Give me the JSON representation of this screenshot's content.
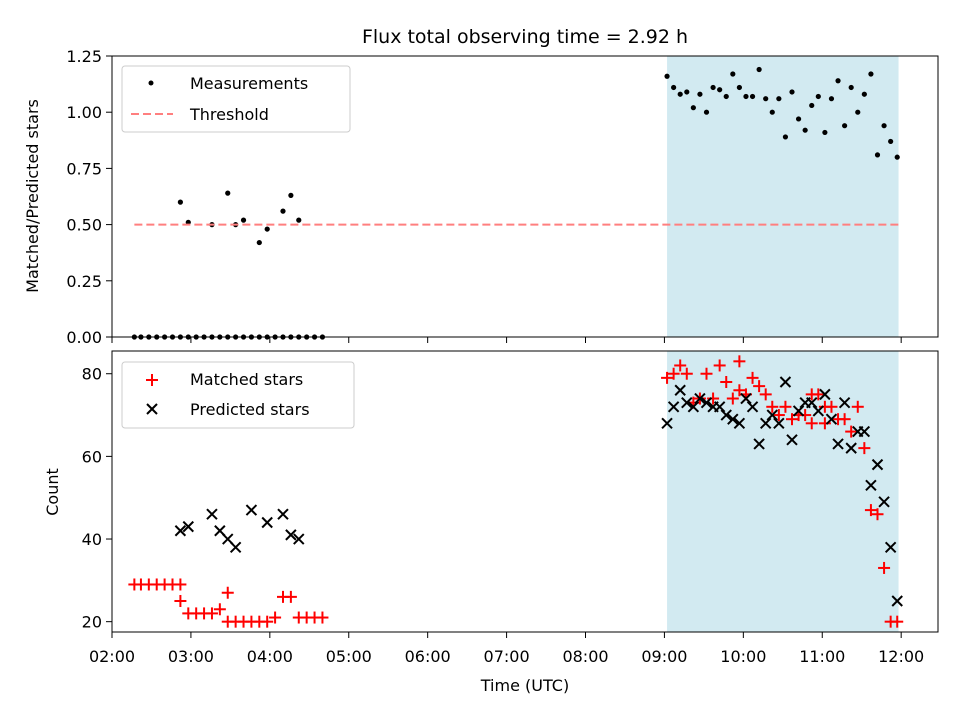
{
  "title": "Flux total observing time = 2.92 h",
  "colors": {
    "shade": "#add8e6",
    "threshold": "#ff7f7f",
    "measurement": "#000000",
    "matched": "#ff0000",
    "predicted": "#000000"
  },
  "chart_data": [
    {
      "type": "scatter",
      "ylabel": "Matched/Predicted stars",
      "xlim": [
        "02:00",
        "12:28"
      ],
      "ylim": [
        0,
        1.25
      ],
      "yticks": [
        "0.00",
        "0.25",
        "0.50",
        "0.75",
        "1.00",
        "1.25"
      ],
      "legend": "top-left",
      "grid": false,
      "shaded_interval": [
        "09:02",
        "11:58"
      ],
      "series": [
        {
          "name": "Measurements",
          "marker": "dot",
          "x": [
            "02:17",
            "02:22",
            "02:28",
            "02:34",
            "02:40",
            "02:46",
            "02:52",
            "02:58",
            "03:04",
            "03:10",
            "03:16",
            "03:22",
            "03:28",
            "03:34",
            "03:40",
            "03:46",
            "03:52",
            "03:58",
            "04:04",
            "04:10",
            "04:16",
            "04:22",
            "04:28",
            "04:34",
            "04:40",
            "02:52",
            "02:58",
            "03:16",
            "03:28",
            "03:34",
            "03:40",
            "03:52",
            "03:58",
            "04:10",
            "04:16",
            "04:22",
            "09:02",
            "09:07",
            "09:12",
            "09:17",
            "09:22",
            "09:27",
            "09:32",
            "09:37",
            "09:42",
            "09:47",
            "09:52",
            "09:57",
            "10:02",
            "10:07",
            "10:12",
            "10:17",
            "10:22",
            "10:27",
            "10:32",
            "10:37",
            "10:42",
            "10:47",
            "10:52",
            "10:57",
            "11:02",
            "11:07",
            "11:12",
            "11:17",
            "11:22",
            "11:27",
            "11:32",
            "11:37",
            "11:42",
            "11:47",
            "11:52",
            "11:57"
          ],
          "y": [
            0,
            0,
            0,
            0,
            0,
            0,
            0,
            0,
            0,
            0,
            0,
            0,
            0,
            0,
            0,
            0,
            0,
            0,
            0,
            0,
            0,
            0,
            0,
            0,
            0,
            0.6,
            0.51,
            0.5,
            0.64,
            0.5,
            0.52,
            0.42,
            0.48,
            0.56,
            0.63,
            0.52,
            1.16,
            1.11,
            1.08,
            1.09,
            1.02,
            1.08,
            1.0,
            1.11,
            1.1,
            1.07,
            1.17,
            1.11,
            1.07,
            1.07,
            1.19,
            1.06,
            1.0,
            1.06,
            0.89,
            1.09,
            0.97,
            0.92,
            1.03,
            1.07,
            0.91,
            1.06,
            1.14,
            0.94,
            1.11,
            1.0,
            1.08,
            1.17,
            0.81,
            0.94,
            0.87,
            0.8
          ]
        },
        {
          "name": "Threshold",
          "marker": "dashed-line",
          "x": [
            "02:17",
            "11:59"
          ],
          "y": [
            0.5,
            0.5
          ]
        }
      ]
    },
    {
      "type": "scatter",
      "xlabel": "Time (UTC)",
      "ylabel": "Count",
      "xlim": [
        "02:00",
        "12:28"
      ],
      "ylim": [
        17.5,
        85.5
      ],
      "xticks": [
        "02:00",
        "03:00",
        "04:00",
        "05:00",
        "06:00",
        "07:00",
        "08:00",
        "09:00",
        "10:00",
        "11:00",
        "12:00"
      ],
      "yticks": [
        "20",
        "40",
        "60",
        "80"
      ],
      "legend": "top-left",
      "grid": false,
      "shaded_interval": [
        "09:02",
        "11:58"
      ],
      "series": [
        {
          "name": "Matched stars",
          "marker": "plus",
          "x": [
            "02:17",
            "02:22",
            "02:28",
            "02:34",
            "02:40",
            "02:46",
            "02:52",
            "02:52",
            "02:58",
            "03:04",
            "03:10",
            "03:16",
            "03:22",
            "03:28",
            "03:34",
            "03:40",
            "03:46",
            "03:52",
            "03:58",
            "04:04",
            "04:10",
            "04:16",
            "04:22",
            "04:28",
            "04:34",
            "04:40",
            "03:28",
            "09:02",
            "09:07",
            "09:12",
            "09:17",
            "09:22",
            "09:27",
            "09:32",
            "09:37",
            "09:42",
            "09:47",
            "09:52",
            "09:57",
            "10:02",
            "10:07",
            "10:12",
            "10:17",
            "10:22",
            "10:27",
            "10:32",
            "10:37",
            "10:42",
            "10:47",
            "10:52",
            "10:57",
            "11:02",
            "11:07",
            "11:12",
            "11:17",
            "11:22",
            "11:27",
            "11:32",
            "11:37",
            "11:42",
            "11:47",
            "11:52",
            "11:57",
            "09:57",
            "10:52",
            "11:02"
          ],
          "y": [
            29,
            29,
            29,
            29,
            29,
            29,
            29,
            25,
            22,
            22,
            22,
            22,
            23,
            20,
            20,
            20,
            20,
            20,
            20,
            21,
            26,
            26,
            21,
            21,
            21,
            21,
            27,
            79,
            80,
            82,
            80,
            73,
            74,
            80,
            74,
            82,
            78,
            74,
            83,
            75,
            79,
            77,
            75,
            72,
            70,
            72,
            69,
            70,
            70,
            68,
            75,
            68,
            72,
            69,
            69,
            66,
            72,
            62,
            47,
            46,
            33,
            20,
            20,
            76,
            75,
            72
          ]
        },
        {
          "name": "Predicted stars",
          "marker": "cross",
          "x": [
            "02:52",
            "02:58",
            "03:16",
            "03:22",
            "03:28",
            "03:34",
            "03:46",
            "03:58",
            "04:10",
            "04:16",
            "04:22",
            "09:02",
            "09:07",
            "09:12",
            "09:17",
            "09:22",
            "09:27",
            "09:32",
            "09:37",
            "09:42",
            "09:47",
            "09:52",
            "09:57",
            "10:02",
            "10:07",
            "10:12",
            "10:17",
            "10:22",
            "10:27",
            "10:32",
            "10:37",
            "10:42",
            "10:47",
            "10:52",
            "10:57",
            "11:02",
            "11:07",
            "11:12",
            "11:17",
            "11:22",
            "11:27",
            "11:32",
            "11:37",
            "11:42",
            "11:47",
            "11:52",
            "11:57"
          ],
          "y": [
            42,
            43,
            46,
            42,
            40,
            38,
            47,
            44,
            46,
            41,
            40,
            68,
            72,
            76,
            73,
            72,
            74,
            73,
            72,
            72,
            70,
            69,
            68,
            74,
            72,
            63,
            68,
            70,
            68,
            78,
            64,
            71,
            73,
            73,
            71,
            75,
            69,
            63,
            73,
            62,
            66,
            66,
            53,
            58,
            49,
            38,
            25
          ]
        }
      ]
    }
  ]
}
